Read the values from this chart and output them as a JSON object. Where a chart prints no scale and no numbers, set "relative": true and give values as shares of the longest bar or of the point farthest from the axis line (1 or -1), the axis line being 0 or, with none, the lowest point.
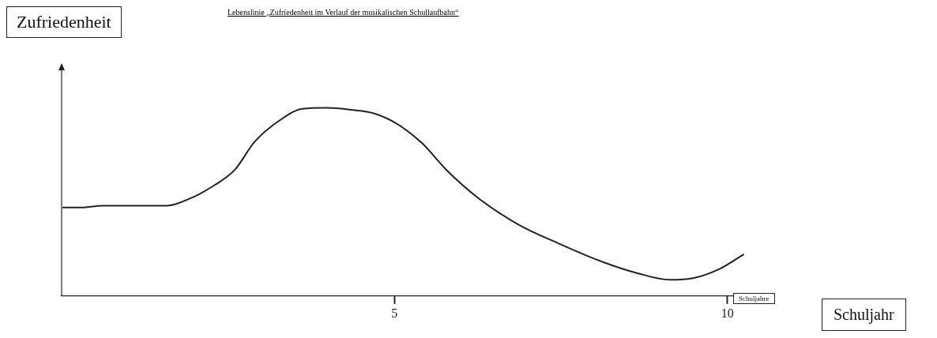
{
  "chart_data": {
    "type": "line",
    "title": "Lebenslinie „Zufriedenheit im Verlauf der musikalischen Schullaufbahn“",
    "ylabel": "Zufriedenheit",
    "xlabel": "Schuljahre",
    "annotations": [
      "Schuljahr"
    ],
    "relative": true,
    "x": [
      0.02,
      0.26,
      0.62,
      1.58,
      1.94,
      2.3,
      2.6,
      2.9,
      3.26,
      3.62,
      3.98,
      4.34,
      4.7,
      5.06,
      5.42,
      5.78,
      6.26,
      6.86,
      7.46,
      8.06,
      8.66,
      9.14,
      9.5,
      9.86,
      10.24
    ],
    "series": [
      {
        "color": "#222222",
        "values": [
          0.47,
          0.47,
          0.48,
          0.48,
          0.52,
          0.59,
          0.67,
          0.82,
          0.93,
          0.995,
          1.0,
          0.99,
          0.97,
          0.91,
          0.81,
          0.67,
          0.52,
          0.38,
          0.28,
          0.19,
          0.12,
          0.086,
          0.096,
          0.14,
          0.22
        ]
      }
    ],
    "xlim": [
      0,
      10.3
    ],
    "xticks": [
      5,
      10
    ],
    "grid": false,
    "legend": false,
    "marker": "none",
    "line_style": "solid"
  }
}
